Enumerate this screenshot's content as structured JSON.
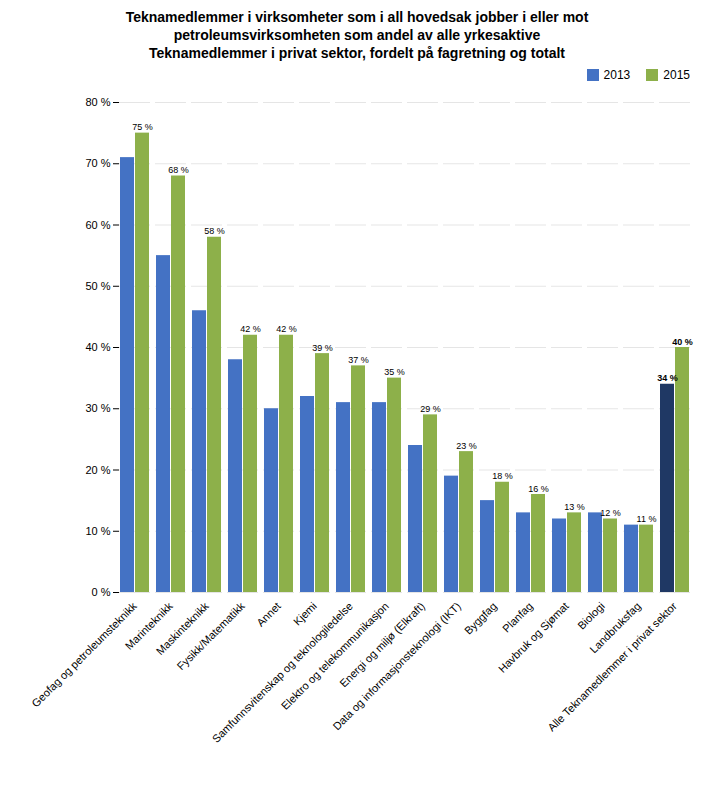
{
  "chart_data": {
    "type": "bar",
    "title": "Teknamedlemmer i virksomheter som i all hovedsak jobber i eller mot\npetroleumsvirksomheten som andel av alle yrkesaktive\nTeknamedlemmer i privat sektor, fordelt på fagretning og totalt",
    "categories": [
      "Geofag og petroleumsteknikk",
      "Marinteknikk",
      "Maskinteknikk",
      "Fysikk/Matematikk",
      "Annet",
      "Kjemi",
      "Samfunnsvitenskap og teknologiledelse",
      "Elektro og telekommunikasjon",
      "Energi og miljø (Elkraft)",
      "Data og informasjonsteknologi (IKT)",
      "Byggfag",
      "Planfag",
      "Havbruk og Sjømat",
      "Biologi",
      "Landbruksfag",
      "Alle Teknamedlemmer i privat sektor"
    ],
    "series": [
      {
        "name": "2013",
        "color": "#4472C4",
        "colors": [
          "#4472C4",
          "#4472C4",
          "#4472C4",
          "#4472C4",
          "#4472C4",
          "#4472C4",
          "#4472C4",
          "#4472C4",
          "#4472C4",
          "#4472C4",
          "#4472C4",
          "#4472C4",
          "#4472C4",
          "#4472C4",
          "#4472C4",
          "#1F3864"
        ],
        "values": [
          71,
          55,
          46,
          38,
          30,
          32,
          31,
          31,
          24,
          19,
          15,
          13,
          12,
          13,
          11,
          34
        ],
        "value_labels": [
          null,
          null,
          null,
          null,
          null,
          null,
          null,
          null,
          null,
          null,
          null,
          null,
          null,
          null,
          null,
          "34 %"
        ]
      },
      {
        "name": "2015",
        "color": "#8DB04A",
        "values": [
          75,
          68,
          58,
          42,
          42,
          39,
          37,
          35,
          29,
          23,
          18,
          16,
          13,
          12,
          11,
          40
        ],
        "value_labels": [
          "75 %",
          "68 %",
          "58 %",
          "42 %",
          "42 %",
          "39 %",
          "37 %",
          "35 %",
          "29 %",
          "23 %",
          "18 %",
          "16 %",
          "13 %",
          "12 %",
          "11 %",
          "40 %"
        ]
      }
    ],
    "ylim": [
      0,
      80
    ],
    "yticks": [
      {
        "value": 0,
        "label": "0 %"
      },
      {
        "value": 10,
        "label": "10 %"
      },
      {
        "value": 20,
        "label": "20 %"
      },
      {
        "value": 30,
        "label": "30 %"
      },
      {
        "value": 40,
        "label": "40 %"
      },
      {
        "value": 50,
        "label": "50 %"
      },
      {
        "value": 60,
        "label": "60 %"
      },
      {
        "value": 70,
        "label": "70 %"
      },
      {
        "value": 80,
        "label": "80 %"
      }
    ],
    "grid": true,
    "legend": "upper right",
    "data_labels": true
  }
}
